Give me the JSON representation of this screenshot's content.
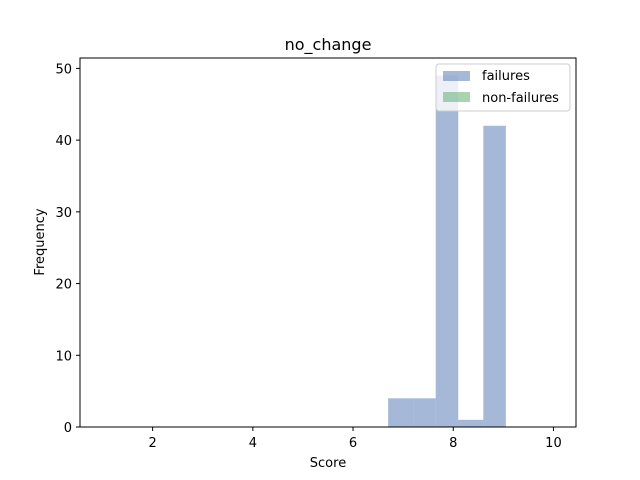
{
  "chart_data": {
    "type": "bar",
    "title": "no_change",
    "xlabel": "Score",
    "ylabel": "Frequency",
    "xlim": [
      0.55,
      10.45
    ],
    "ylim": [
      0,
      51.45
    ],
    "x_ticks": [
      2,
      4,
      6,
      8,
      10
    ],
    "y_ticks": [
      0,
      10,
      20,
      30,
      40,
      50
    ],
    "legend": {
      "position": "top-right"
    },
    "series": [
      {
        "name": "failures",
        "color": "#4c72b0",
        "opacity": 0.5,
        "bins": [
          {
            "x0": 6.7,
            "x1": 7.2,
            "value": 4
          },
          {
            "x0": 7.2,
            "x1": 7.65,
            "value": 4
          },
          {
            "x0": 7.65,
            "x1": 8.1,
            "value": 49
          },
          {
            "x0": 8.1,
            "x1": 8.6,
            "value": 1
          },
          {
            "x0": 8.6,
            "x1": 9.05,
            "value": 42
          }
        ]
      },
      {
        "name": "non-failures",
        "color": "#55a868",
        "opacity": 0.5,
        "bins": []
      }
    ]
  }
}
